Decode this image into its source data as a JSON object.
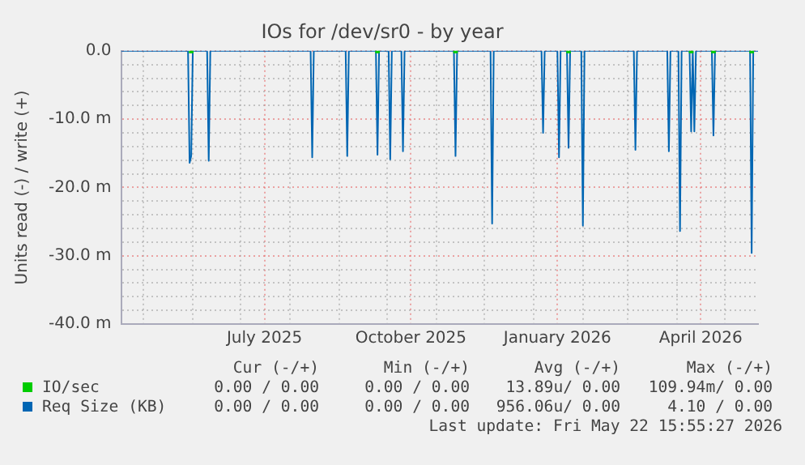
{
  "chart_data": {
    "type": "line",
    "title": "IOs for /dev/sr0 - by year",
    "ylabel": "Units read (-) / write (+)",
    "xlim": [
      "2025-04-17",
      "2026-05-22"
    ],
    "xticks": [
      {
        "value": "2025-05-01",
        "label": null
      },
      {
        "value": "2025-06-01",
        "label": null
      },
      {
        "value": "2025-07-01",
        "label": null
      },
      {
        "value": "2025-07-16",
        "label": "July 2025"
      },
      {
        "value": "2025-08-01",
        "label": null
      },
      {
        "value": "2025-09-01",
        "label": null
      },
      {
        "value": "2025-10-01",
        "label": null
      },
      {
        "value": "2025-10-16",
        "label": "October 2025"
      },
      {
        "value": "2025-11-01",
        "label": null
      },
      {
        "value": "2025-12-01",
        "label": null
      },
      {
        "value": "2026-01-01",
        "label": null
      },
      {
        "value": "2026-01-16",
        "label": "January 2026"
      },
      {
        "value": "2026-02-01",
        "label": null
      },
      {
        "value": "2026-03-01",
        "label": null
      },
      {
        "value": "2026-04-01",
        "label": null
      },
      {
        "value": "2026-04-16",
        "label": "April 2026"
      },
      {
        "value": "2026-05-01",
        "label": null
      }
    ],
    "ylim": [
      -40,
      0
    ],
    "yticks": [
      {
        "value": -40,
        "label": "-40.0 m"
      },
      {
        "value": -38,
        "label": null
      },
      {
        "value": -36,
        "label": null
      },
      {
        "value": -34,
        "label": null
      },
      {
        "value": -32,
        "label": null
      },
      {
        "value": -30,
        "label": "-30.0 m"
      },
      {
        "value": -28,
        "label": null
      },
      {
        "value": -26,
        "label": null
      },
      {
        "value": -24,
        "label": null
      },
      {
        "value": -22,
        "label": null
      },
      {
        "value": -20,
        "label": "-20.0 m"
      },
      {
        "value": -18,
        "label": null
      },
      {
        "value": -16,
        "label": null
      },
      {
        "value": -14,
        "label": null
      },
      {
        "value": -12,
        "label": null
      },
      {
        "value": -10,
        "label": "-10.0 m"
      },
      {
        "value": -8,
        "label": null
      },
      {
        "value": -6,
        "label": null
      },
      {
        "value": -4,
        "label": null
      },
      {
        "value": -2,
        "label": null
      },
      {
        "value": 0,
        "label": "0.0"
      }
    ],
    "grid": true,
    "legend": "bottom",
    "series": [
      {
        "name": "IO/sec",
        "color": "#00cc00",
        "type": "scatter",
        "marker": "square",
        "x": [
          "2025-05-31",
          "2025-09-25",
          "2025-11-13",
          "2026-01-23",
          "2026-04-10",
          "2026-04-24",
          "2026-05-18"
        ],
        "values": [
          0,
          0,
          0,
          0,
          0,
          0,
          0
        ]
      },
      {
        "name": "Req Size (KB)",
        "color": "#0066b3",
        "x": [
          "2025-04-17",
          "2025-05-29",
          "2025-05-30",
          "2025-05-31",
          "2025-06-01",
          "2025-06-10",
          "2025-06-11",
          "2025-06-12",
          "2025-08-14",
          "2025-08-15",
          "2025-08-16",
          "2025-09-05",
          "2025-09-06",
          "2025-09-07",
          "2025-09-24",
          "2025-09-25",
          "2025-09-26",
          "2025-10-02",
          "2025-10-03",
          "2025-10-04",
          "2025-10-10",
          "2025-10-11",
          "2025-10-12",
          "2025-11-12",
          "2025-11-13",
          "2025-11-14",
          "2025-12-05",
          "2025-12-06",
          "2025-12-07",
          "2026-01-06",
          "2026-01-07",
          "2026-01-08",
          "2026-01-16",
          "2026-01-17",
          "2026-01-18",
          "2026-01-22",
          "2026-01-23",
          "2026-01-24",
          "2026-01-31",
          "2026-02-01",
          "2026-02-02",
          "2026-03-05",
          "2026-03-06",
          "2026-03-07",
          "2026-03-26",
          "2026-03-27",
          "2026-03-28",
          "2026-04-02",
          "2026-04-03",
          "2026-04-04",
          "2026-04-09",
          "2026-04-10",
          "2026-04-11",
          "2026-04-12",
          "2026-04-13",
          "2026-04-23",
          "2026-04-24",
          "2026-04-25",
          "2026-05-17",
          "2026-05-18",
          "2026-05-19",
          "2026-05-22"
        ],
        "values": [
          0,
          0,
          -16.4,
          -15.4,
          0,
          0,
          -16.1,
          0,
          0,
          -15.6,
          0,
          0,
          -15.4,
          0,
          0,
          -15.2,
          0,
          0,
          -15.9,
          0,
          0,
          -14.7,
          0,
          0,
          -15.4,
          0,
          0,
          -25.3,
          0,
          0,
          -12,
          0,
          0,
          -15.6,
          0,
          0,
          -14.2,
          0,
          0,
          -25.6,
          0,
          0,
          -14.5,
          0,
          0,
          -14.7,
          0,
          0,
          -26.4,
          0,
          0,
          -11.8,
          0,
          -11.8,
          0,
          0,
          -12.4,
          0,
          0,
          -29.6,
          0,
          0
        ]
      }
    ],
    "annotations": [
      "Cur (-/+)",
      "Min (-/+)",
      "Avg (-/+)",
      "Max (-/+)",
      "0.00 / 0.00",
      "0.00 / 0.00",
      "13.89u/ 0.00",
      "109.94m/ 0.00",
      "0.00 / 0.00",
      "0.00 / 0.00",
      "956.06u/ 0.00",
      "4.10 / 0.00",
      "Last update: Fri May 22 15:55:27 2026"
    ]
  }
}
